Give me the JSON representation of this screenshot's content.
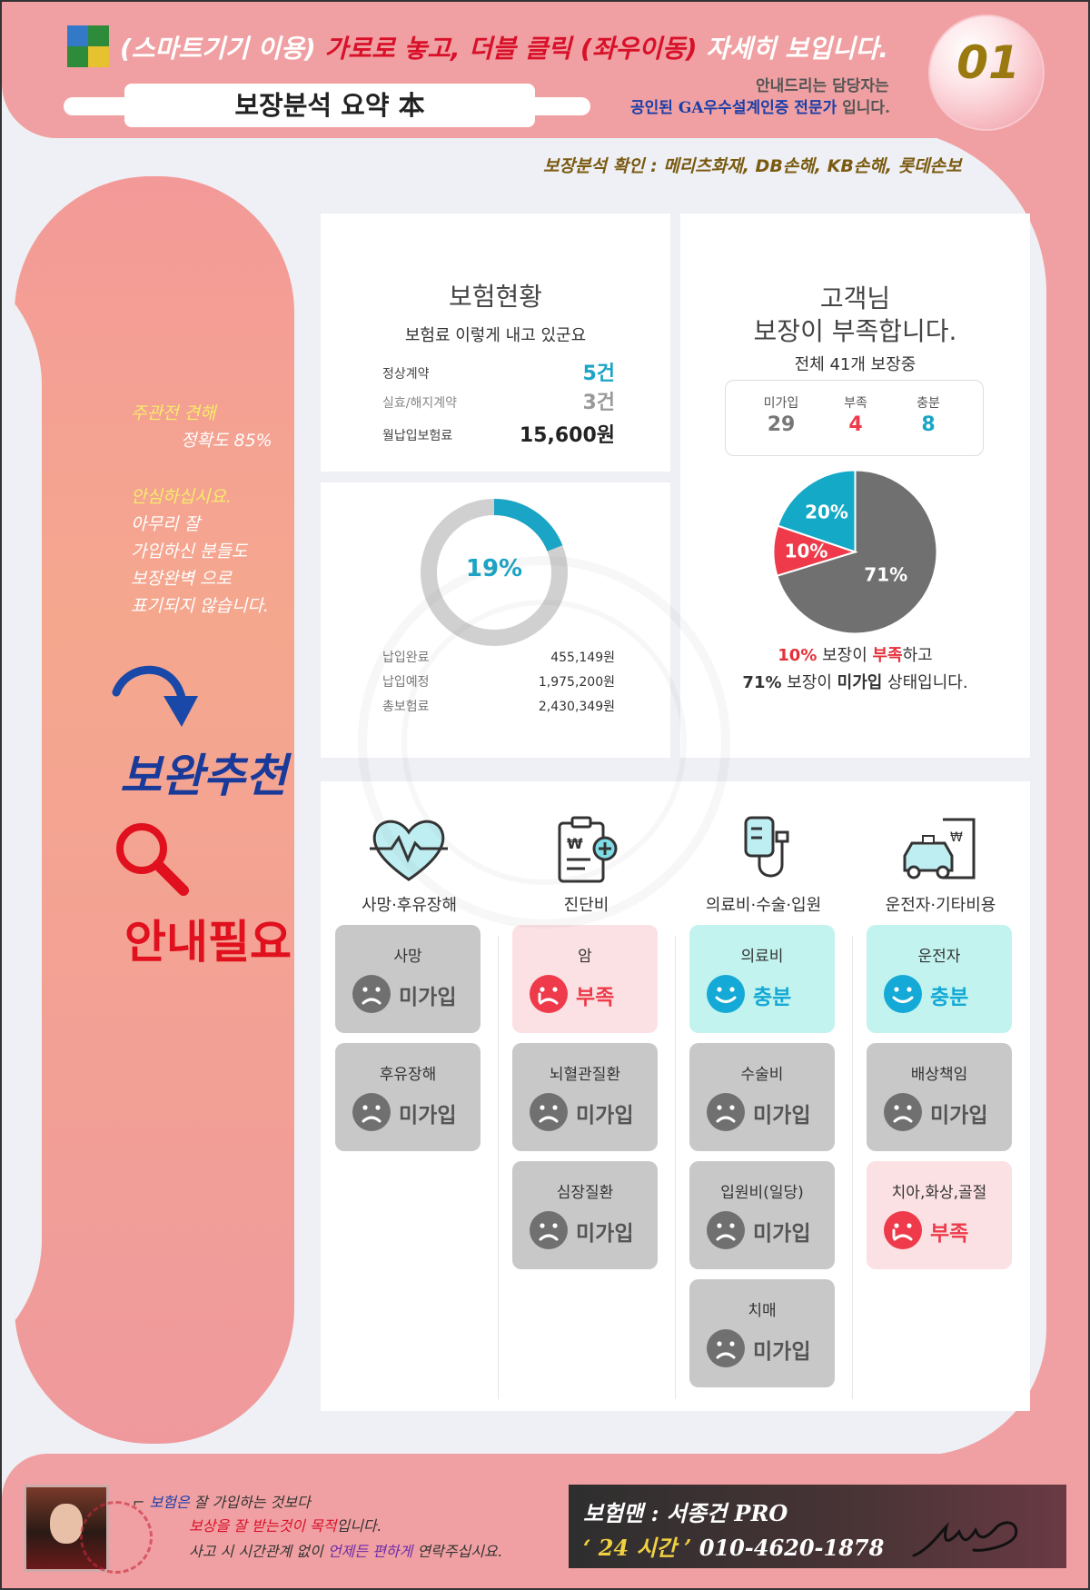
{
  "header": {
    "instruction_prefix": "(스마트기기 이용)",
    "instruction_highlight": "가로로 놓고, 더블 클릭 (좌우이동)",
    "instruction_suffix": "자세히 보입니다.",
    "title": "보장분석 요약 本",
    "agent_line1": "안내드리는 담당자는",
    "agent_line2_blue": "공인된 GA우수설계인증 전문가",
    "agent_line2_rest": " 입니다.",
    "badge": "01",
    "confirm": "보장분석 확인 : 메리츠화재, DB손해, KB손해, 롯데손보"
  },
  "sidebar": {
    "opinion_label": "주관전 견해",
    "accuracy": "정확도 85%",
    "reassure_title": "안심하십시요.",
    "lines": [
      "아무리 잘",
      "가입하신 분들도",
      "보장완벽 으로",
      "표기되지 않습니다."
    ],
    "recommend": "보완추천",
    "guide_needed": "안내필요"
  },
  "insurance_status": {
    "title": "보험현황",
    "subtitle": "보험료 이렇게 내고 있군요",
    "rows": [
      {
        "label": "정상계약",
        "value": "5건",
        "color": "#1aa4c6"
      },
      {
        "label": "실효/해지계약",
        "value": "3건",
        "color": "#999999"
      },
      {
        "label": "월납입보험료",
        "value": "15,600원",
        "color": "#222222"
      }
    ]
  },
  "payment": {
    "percent_label": "19%",
    "percent": 19,
    "rows": [
      {
        "label": "납입완료",
        "value": "455,149원"
      },
      {
        "label": "납입예정",
        "value": "1,975,200원"
      },
      {
        "label": "총보험료",
        "value": "2,430,349원"
      }
    ]
  },
  "coverage": {
    "title_line1": "고객님",
    "title_line2": "보장이 부족합니다.",
    "subtitle": "전체 41개 보장중",
    "stats": [
      {
        "label": "미가입",
        "value": "29",
        "color": "#777777"
      },
      {
        "label": "부족",
        "value": "4",
        "color": "#ee3a4a"
      },
      {
        "label": "충분",
        "value": "8",
        "color": "#1aa4c6"
      }
    ],
    "note1_pct": "10%",
    "note1_mid": " 보장이 ",
    "note1_key": "부족",
    "note1_end": "하고",
    "note2_pct": "71%",
    "note2_mid": " 보장이 ",
    "note2_key": "미가입",
    "note2_end": " 상태입니다."
  },
  "chart_data": {
    "type": "pie",
    "slices": [
      {
        "label": "71%",
        "value": 71,
        "color": "#707070"
      },
      {
        "label": "10%",
        "value": 10,
        "color": "#ee3a4a"
      },
      {
        "label": "20%",
        "value": 20,
        "color": "#14a9c6"
      }
    ]
  },
  "categories": [
    {
      "label": "사망·후유장해",
      "icon": "heart-monitor-icon",
      "items": [
        {
          "name": "사망",
          "status": "미가입",
          "kind": "none"
        },
        {
          "name": "후유장해",
          "status": "미가입",
          "kind": "none"
        }
      ]
    },
    {
      "label": "진단비",
      "icon": "diagnosis-clipboard-icon",
      "items": [
        {
          "name": "암",
          "status": "부족",
          "kind": "short"
        },
        {
          "name": "뇌혈관질환",
          "status": "미가입",
          "kind": "none"
        },
        {
          "name": "심장질환",
          "status": "미가입",
          "kind": "none"
        }
      ]
    },
    {
      "label": "의료비·수술·입원",
      "icon": "iv-drip-icon",
      "items": [
        {
          "name": "의료비",
          "status": "충분",
          "kind": "enough"
        },
        {
          "name": "수술비",
          "status": "미가입",
          "kind": "none"
        },
        {
          "name": "입원비(일당)",
          "status": "미가입",
          "kind": "none"
        },
        {
          "name": "치매",
          "status": "미가입",
          "kind": "none"
        }
      ]
    },
    {
      "label": "운전자·기타비용",
      "icon": "car-receipt-icon",
      "items": [
        {
          "name": "운전자",
          "status": "충분",
          "kind": "enough"
        },
        {
          "name": "배상책임",
          "status": "미가입",
          "kind": "none"
        },
        {
          "name": "치아,화상,골절",
          "status": "부족",
          "kind": "short"
        }
      ]
    }
  ],
  "footer": {
    "line1_blue": "보험은",
    "line1_rest": " 잘 가입하는 것보다",
    "line2_red": "보상을 잘 받는것이 목적",
    "line2_rest": "입니다.",
    "line3_a": "사고 시 시간관계 없이 ",
    "line3_pur": "언제든 편하게",
    "line3_b": " 연락주십시요.",
    "agent_name": "보험맨 : 서종건 PRO",
    "hours": "‘ 24 시간 ’",
    "phone": "010-4620-1878"
  }
}
